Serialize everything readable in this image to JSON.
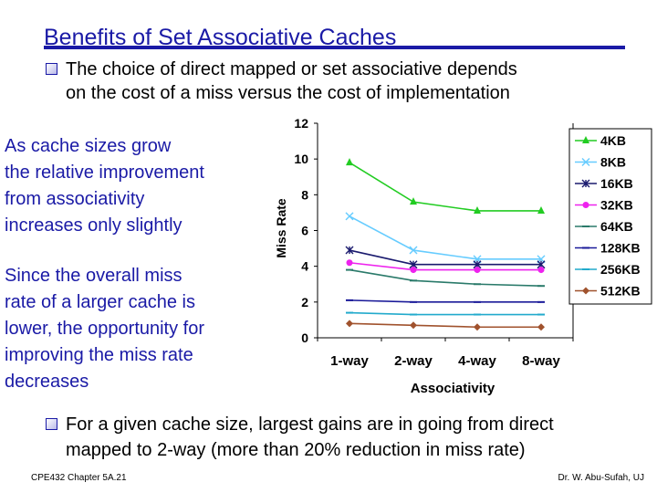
{
  "slide": {
    "title": "Benefits of Set Associative Caches",
    "bullet1": {
      "line1": "The choice of direct mapped or set associative depends",
      "line2": "on the cost of a miss versus the cost of implementation"
    },
    "note1": [
      "As cache sizes grow",
      "the relative improvement",
      "from associativity",
      "increases only slightly"
    ],
    "note2": [
      "Since the overall miss",
      "rate of a larger cache is",
      "lower, the opportunity for",
      "improving the miss rate",
      "decreases"
    ],
    "bullet2": {
      "line1": "For a given cache size, largest gains are in going from direct",
      "line2": "mapped to 2-way (more than 20% reduction in miss rate)"
    },
    "footer_left": "CPE432  Chapter 5A.21",
    "footer_right": "Dr. W. Abu-Sufah, UJ"
  },
  "chart_data": {
    "type": "line",
    "categories": [
      "1-way",
      "2-way",
      "4-way",
      "8-way"
    ],
    "xlabel": "Associativity",
    "ylabel": "Miss Rate",
    "ylim": [
      0,
      12
    ],
    "yticks": [
      0,
      2,
      4,
      6,
      8,
      10,
      12
    ],
    "grid": false,
    "legend": "right",
    "series": [
      {
        "name": "4KB",
        "values": [
          9.8,
          7.6,
          7.1,
          7.1
        ],
        "color": "#22cc22",
        "marker": "triangle"
      },
      {
        "name": "8KB",
        "values": [
          6.8,
          4.9,
          4.4,
          4.4
        ],
        "color": "#66ccff",
        "marker": "x"
      },
      {
        "name": "16KB",
        "values": [
          4.9,
          4.1,
          4.1,
          4.1
        ],
        "color": "#1a1a6e",
        "marker": "star"
      },
      {
        "name": "32KB",
        "values": [
          4.2,
          3.8,
          3.8,
          3.8
        ],
        "color": "#ee22ee",
        "marker": "circle"
      },
      {
        "name": "64KB",
        "values": [
          3.8,
          3.2,
          3.0,
          2.9
        ],
        "color": "#2a7a6a",
        "marker": "dash"
      },
      {
        "name": "128KB",
        "values": [
          2.1,
          2.0,
          2.0,
          2.0
        ],
        "color": "#1a1a99",
        "marker": "dash"
      },
      {
        "name": "256KB",
        "values": [
          1.4,
          1.3,
          1.3,
          1.3
        ],
        "color": "#22aacc",
        "marker": "dash"
      },
      {
        "name": "512KB",
        "values": [
          0.8,
          0.7,
          0.6,
          0.6
        ],
        "color": "#a0522d",
        "marker": "diamond"
      }
    ]
  }
}
